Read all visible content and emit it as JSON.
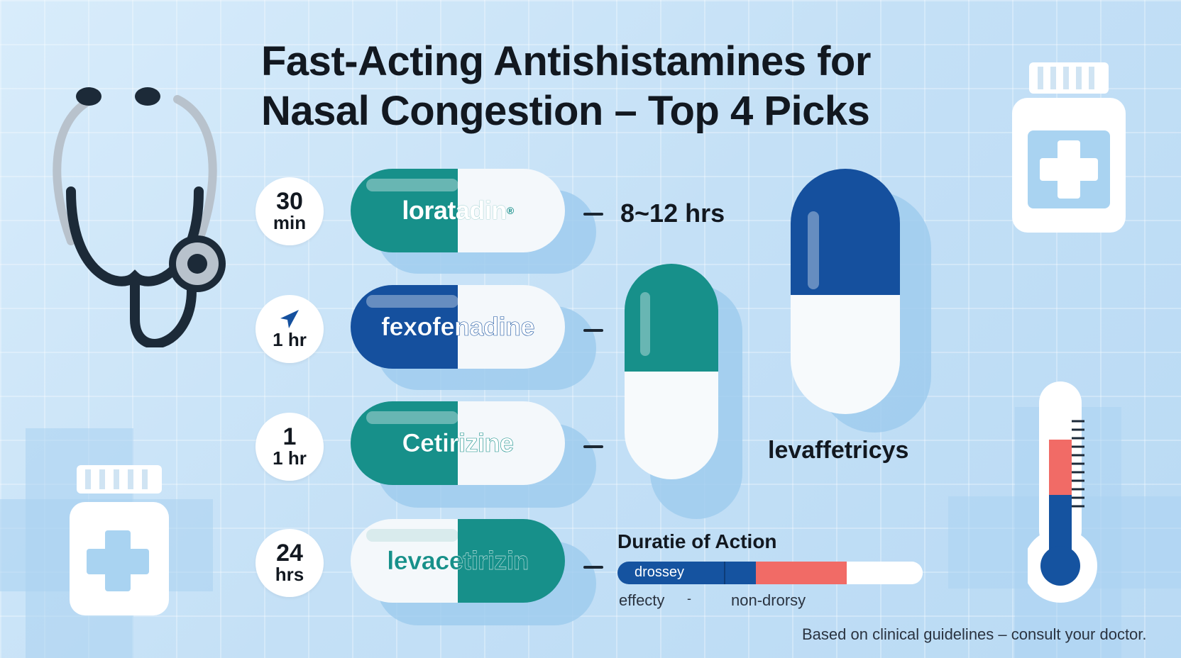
{
  "title": {
    "line1": "Fast-Acting Antishistamines for",
    "line2": "Nasal Congestion – Top 4 Picks"
  },
  "rows": [
    {
      "onset_number": "30",
      "onset_unit": "min",
      "name": "loratadin",
      "name_suffix": "®",
      "duration": "8~12 hrs",
      "left_color": "#17908a",
      "right_color": "#f4f8fb",
      "label_color": "#ffffff"
    },
    {
      "onset_number": "",
      "onset_unit": "1 hr",
      "name": "fexofenadine",
      "name_suffix": "",
      "duration": "",
      "left_color": "#15509e",
      "right_color": "#f4f8fb",
      "label_color": "#ffffff"
    },
    {
      "onset_number": "1",
      "onset_unit": "1 hr",
      "name": "Cetirizine",
      "name_suffix": "",
      "duration": "",
      "left_color": "#17908a",
      "right_color": "#f4f8fb",
      "label_color": "#ffffff"
    },
    {
      "onset_number": "24",
      "onset_unit": "hrs",
      "name": "levacetirizin",
      "name_suffix": "",
      "duration": "",
      "left_color": "#f4f8fb",
      "right_color": "#17908a",
      "label_color": "#17908a"
    }
  ],
  "capsule_label": "levaffetricys",
  "legend": {
    "title": "Duratie of Action",
    "bar_label": "drossey",
    "left_caption": "effecty",
    "separator": "-",
    "right_caption": "non-drorsy",
    "segments": [
      {
        "color": "#1553a0",
        "value": 0.35
      },
      {
        "color": "#1553a0",
        "value": 0.1
      },
      {
        "color": "#f16b66",
        "value": 0.3
      },
      {
        "color": "#ffffff",
        "value": 0.25
      }
    ]
  },
  "footer": "Based on clinical guidelines – consult your doctor.",
  "icons": [
    "stethoscope-icon",
    "send-arrow-icon",
    "medicine-bottle-icon",
    "thermometer-icon"
  ]
}
